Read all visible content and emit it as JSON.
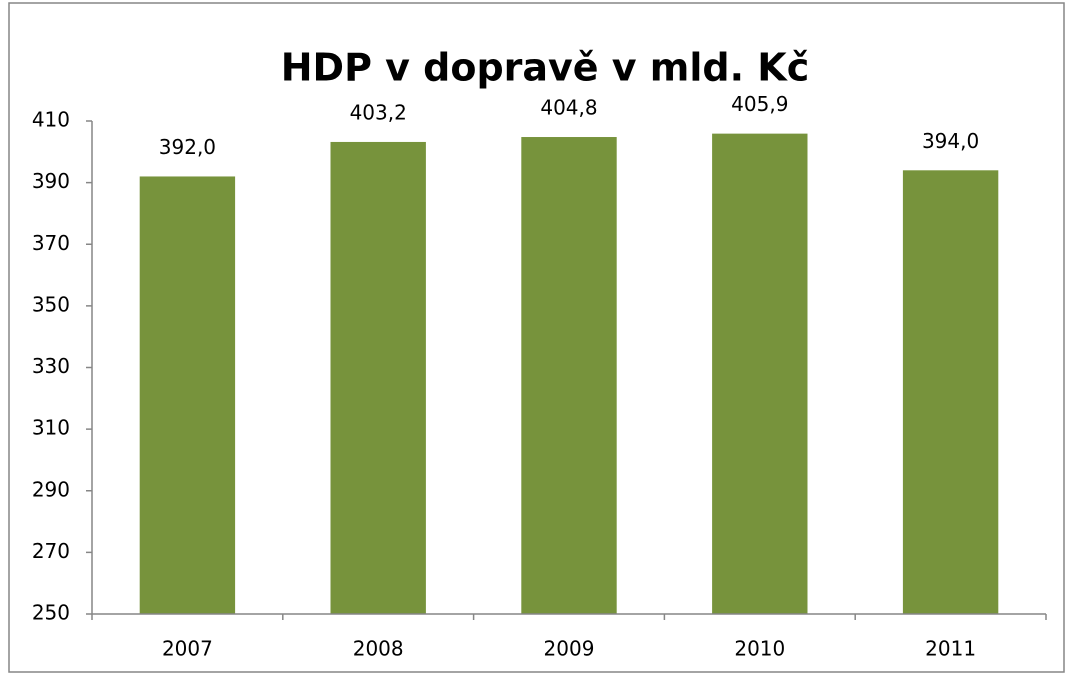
{
  "chart_data": {
    "type": "bar",
    "title": "HDP v dopravě v mld. Kč",
    "categories": [
      "2007",
      "2008",
      "2009",
      "2010",
      "2011"
    ],
    "values": [
      392.0,
      403.2,
      404.8,
      405.9,
      394.0
    ],
    "value_labels": [
      "392,0",
      "403,2",
      "404,8",
      "405,9",
      "394,0"
    ],
    "color": "#77933c",
    "ylim": [
      250,
      410
    ],
    "yticks": [
      250,
      270,
      290,
      310,
      330,
      350,
      370,
      390,
      410
    ],
    "grid": false
  }
}
